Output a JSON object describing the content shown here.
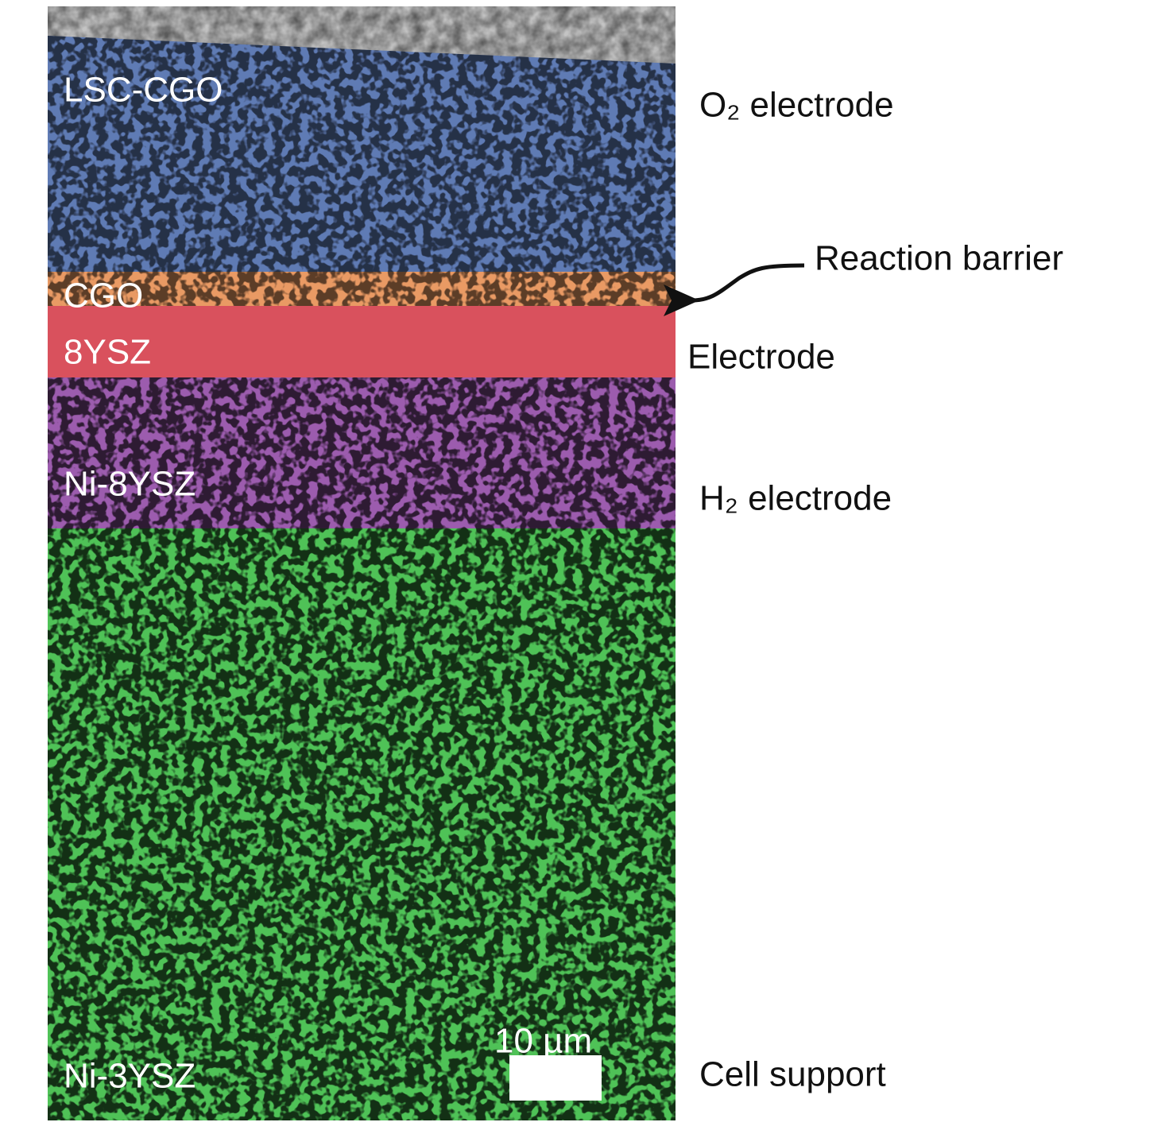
{
  "layers": [
    {
      "label": "LSC-CGO"
    },
    {
      "label": "CGO"
    },
    {
      "label": "8YSZ"
    },
    {
      "label": "Ni-8YSZ"
    },
    {
      "label": "Ni-3YSZ"
    }
  ],
  "annotations": [
    {
      "label": "O₂ electrode"
    },
    {
      "label": "Reaction barrier"
    },
    {
      "label": "Electrode"
    },
    {
      "label": "H₂ electrode"
    },
    {
      "label": "Cell support"
    }
  ],
  "scale_bar": {
    "label": "10 µm"
  }
}
